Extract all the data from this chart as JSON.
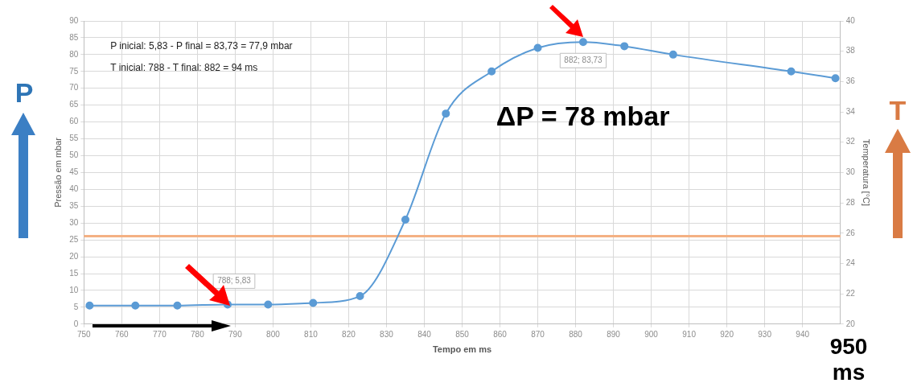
{
  "chart_data": {
    "type": "line",
    "xlabel": "Tempo em ms",
    "ylabel": "Pressão em mbar",
    "y2label": "Temperatura [°C]",
    "x": [
      751.5,
      763.6,
      774.7,
      788,
      798.7,
      810.6,
      823,
      835,
      845.7,
      857.8,
      870,
      882,
      892.9,
      905.8,
      937,
      948.7
    ],
    "series": [
      {
        "color": "#5b9bd5",
        "values": [
          5.5,
          5.5,
          5.5,
          5.83,
          5.8,
          6.3,
          8.3,
          31,
          62.5,
          75,
          82,
          83.73,
          82.5,
          80,
          75,
          73
        ]
      }
    ],
    "xlim": [
      750,
      950
    ],
    "xticks": [
      750,
      760,
      770,
      780,
      790,
      800,
      810,
      820,
      830,
      840,
      850,
      860,
      870,
      880,
      890,
      900,
      910,
      920,
      930,
      940
    ],
    "ylim": [
      0,
      90
    ],
    "yticks": [
      0,
      5,
      10,
      15,
      20,
      25,
      30,
      35,
      40,
      45,
      50,
      55,
      60,
      65,
      70,
      75,
      80,
      85,
      90
    ],
    "y2lim": [
      20,
      40
    ],
    "y2ticks": [
      20,
      22,
      24,
      26,
      28,
      30,
      32,
      34,
      36,
      38,
      40
    ],
    "ref_lines": [
      {
        "axis": "y2",
        "value": 25.8,
        "color": "#f4b183"
      }
    ],
    "grid": true,
    "marker": "circle",
    "line_style": "solid",
    "legend": false,
    "annotations": [
      "P inicial: 5,83 - P final = 83,73 = 77,9 mbar",
      "T inicial: 788 - T final: 882 = 94 ms",
      "ΔP = 78 mbar",
      "950 ms",
      "P",
      "T",
      {
        "text": "788; 5,83",
        "x": 788,
        "y": 5.83
      },
      {
        "text": "882; 83,73",
        "x": 882,
        "y": 83.73
      }
    ]
  }
}
